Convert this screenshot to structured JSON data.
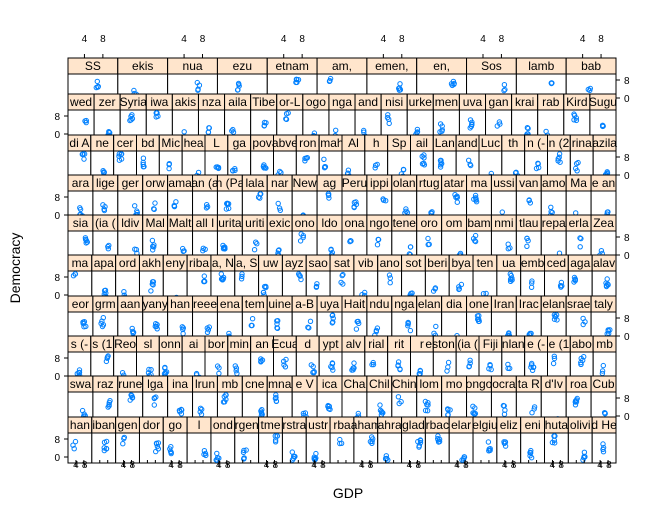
{
  "chart_data": {
    "type": "scatter",
    "layout": "trellis",
    "xlabel": "GDP",
    "ylabel": "Democracy",
    "x_tick_labels": [
      "4",
      "8"
    ],
    "y_tick_labels": [
      "0",
      "8"
    ],
    "colors": {
      "point": "#0080ff",
      "strip_bg": "#ffe5cc",
      "frame": "#000000"
    },
    "panel_rows_top_to_bottom": [
      [
        "SS",
        "ekis",
        "nua",
        "ezu",
        "etnam",
        "am,",
        "emen,",
        "en,",
        "Sos",
        "lamb",
        "bab"
      ],
      [
        "wed",
        "zer",
        "Syria",
        "iwa",
        "akis",
        "nza",
        "aila",
        "Tibe",
        "or-L",
        "ogo",
        "nga",
        "and",
        "nisi",
        "urke",
        "men",
        "uva",
        "gan",
        "krai",
        "rab",
        "Kird",
        "Sugu"
      ],
      [
        "di A",
        "ne",
        "cer",
        "bd",
        "Mic",
        "hea",
        "L",
        "ga",
        "pov",
        "abve",
        "ron",
        "lmah",
        "Al",
        "h",
        "Sp",
        "ail",
        "Lan",
        "and",
        "Luc",
        "th",
        "n (-",
        "n (2",
        "rina",
        "azila"
      ],
      [
        "ara",
        "lige",
        "ger",
        "orw",
        "ama",
        "an (a",
        "n (Pa",
        "lala",
        "nar",
        "New",
        "ag",
        "Peru",
        "ippi",
        "olan",
        "rtug",
        "atar",
        "ma",
        "ussi",
        "van",
        "amo",
        "Ma",
        "e an"
      ],
      [
        "sia",
        "(ia (",
        "ldiv",
        "Mal",
        "Malt",
        "all I",
        "urita",
        "uriti",
        "exic",
        "ono",
        "ldo",
        "ona",
        "ngo",
        "tene",
        "oro",
        "om",
        "bam",
        "nmi",
        "tlau",
        "repa",
        "erla",
        "Zea"
      ],
      [
        "ma",
        "apa",
        "ord",
        "akh",
        "eny",
        "riba",
        "a, N",
        "a, S",
        "uw",
        "ayz",
        "sao",
        "sat",
        "vib",
        "ano",
        "sot",
        "beri",
        "bya",
        "ten",
        "ua",
        "emb",
        "ced",
        "aga",
        "alav"
      ],
      [
        "eor",
        "grm",
        "aan",
        "yany",
        "han",
        "reee",
        "ena",
        "tem",
        "uine",
        "a-B",
        "uya",
        "Hait",
        "ndu",
        "nga",
        "elan",
        "dia",
        "one",
        "Iran",
        "Irac",
        "elan",
        "srae",
        "taly"
      ],
      [
        "s (-",
        "s (1",
        "Reo",
        "sl",
        "onn",
        "ai",
        "bor",
        "min",
        "an",
        "Ecua",
        "d",
        "ypt",
        "alv",
        "rial",
        "rit",
        "r",
        "estonia",
        "(ia (",
        "Fiji",
        "nlan",
        "e (-",
        "e (1",
        "abo",
        "mb"
      ],
      [
        "swa",
        "raz",
        "rune",
        "lga",
        "ina",
        "lrun",
        "mb",
        "cne",
        "mna",
        "e V",
        "ica",
        "Cha",
        "Chil",
        "Chin",
        "lom",
        "mo",
        "ongo",
        "ocra",
        "ta R",
        "d'Iv",
        "roa",
        "Cub"
      ],
      [
        "han",
        "iban",
        "gen",
        "dor",
        "go",
        "l",
        "ond",
        "rgen",
        "tme",
        "rstra",
        "ustr",
        "rba",
        "aham",
        "ahra",
        "glad",
        "rbac",
        "elar",
        "elgiu",
        "eliz",
        "eni",
        "huta",
        "olivi",
        "d He"
      ]
    ]
  }
}
